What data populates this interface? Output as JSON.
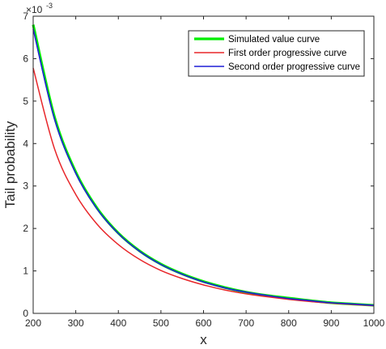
{
  "chart_data": {
    "type": "line",
    "title": "",
    "xlabel": "x",
    "ylabel": "Tail probability",
    "y_multiplier_base": "×10",
    "y_multiplier_exp": "-3",
    "xlim": [
      200,
      1000
    ],
    "ylim": [
      0,
      7
    ],
    "x_ticks": [
      "200",
      "300",
      "400",
      "500",
      "600",
      "700",
      "800",
      "900",
      "1000"
    ],
    "y_ticks": [
      "0",
      "1",
      "2",
      "3",
      "4",
      "5",
      "6",
      "7"
    ],
    "x_tick_values": [
      200,
      300,
      400,
      500,
      600,
      700,
      800,
      900,
      1000
    ],
    "y_tick_values": [
      0,
      1,
      2,
      3,
      4,
      5,
      6,
      7
    ],
    "grid": false,
    "legend_position": "top-right",
    "x": [
      200,
      250,
      300,
      350,
      400,
      450,
      500,
      550,
      600,
      650,
      700,
      750,
      800,
      850,
      900,
      950,
      1000
    ],
    "series": [
      {
        "name": "Simulated value curve",
        "color": "#00ee00",
        "values": [
          6.8,
          4.63,
          3.33,
          2.48,
          1.89,
          1.47,
          1.16,
          0.93,
          0.75,
          0.61,
          0.5,
          0.42,
          0.36,
          0.3,
          0.25,
          0.22,
          0.19
        ]
      },
      {
        "name": "First order progressive curve",
        "color": "#e8262a",
        "values": [
          5.78,
          3.88,
          2.8,
          2.1,
          1.62,
          1.27,
          1.01,
          0.82,
          0.67,
          0.55,
          0.46,
          0.39,
          0.33,
          0.28,
          0.24,
          0.21,
          0.18
        ]
      },
      {
        "name": "Second order progressive curve",
        "color": "#1f1fd6",
        "values": [
          6.7,
          4.58,
          3.3,
          2.46,
          1.88,
          1.46,
          1.15,
          0.92,
          0.74,
          0.6,
          0.5,
          0.42,
          0.35,
          0.3,
          0.25,
          0.22,
          0.19
        ]
      }
    ]
  }
}
